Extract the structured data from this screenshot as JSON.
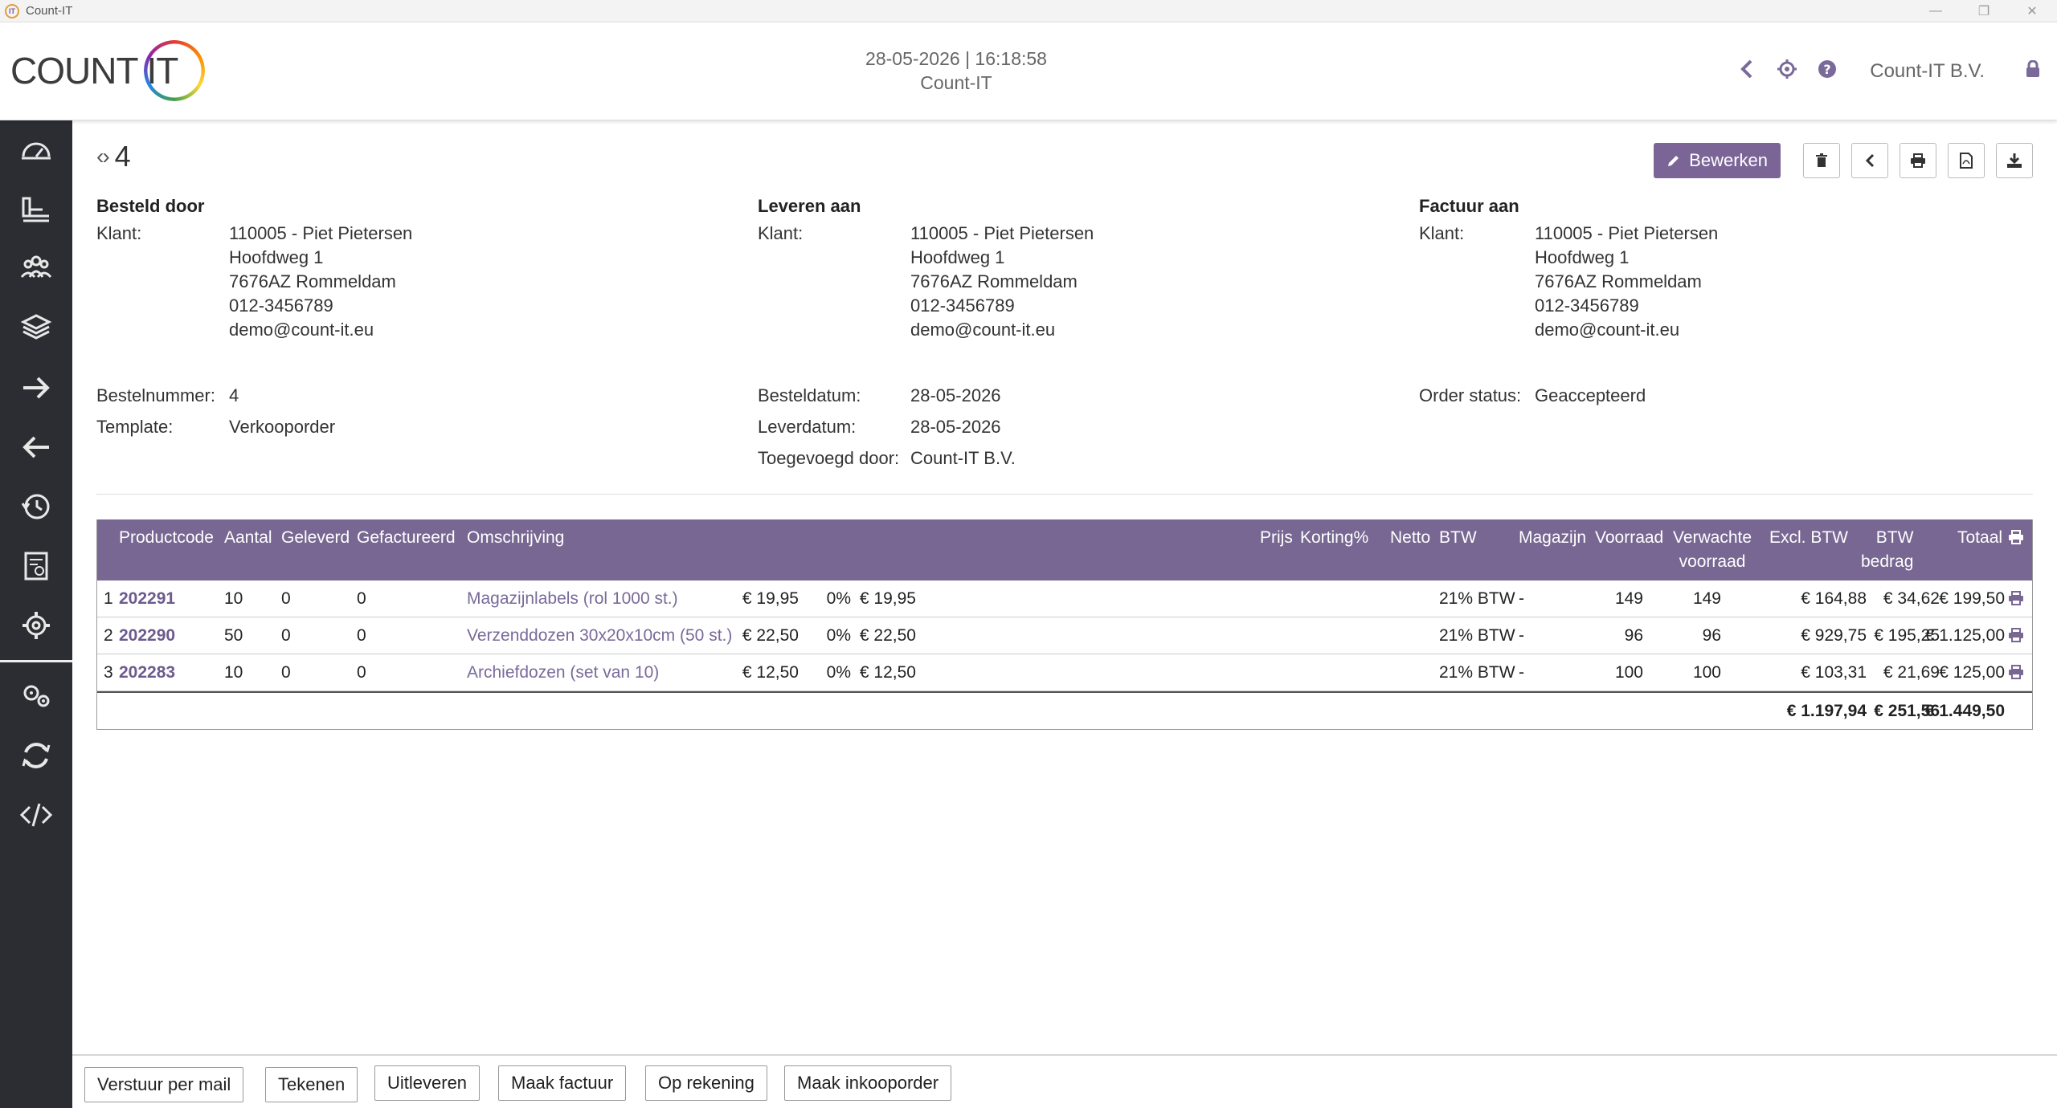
{
  "window": {
    "title": "Count-IT",
    "icon_text": "IT"
  },
  "header": {
    "datetime": "28-05-2026 | 16:18:58",
    "app_name": "Count-IT",
    "company": "Count-IT B.V.",
    "logo_text": "COUNT IT",
    "icons": [
      "back-icon",
      "settings-icon",
      "help-icon",
      "lock-icon"
    ]
  },
  "sidebar": {
    "items": [
      "dashboard-icon",
      "desk-icon",
      "relations-icon",
      "products-icon",
      "outgoing-icon",
      "incoming-icon",
      "history-icon",
      "reports-icon",
      "settings-icon",
      "advanced-settings-icon",
      "sync-icon",
      "developer-icon"
    ]
  },
  "record": {
    "number": "4"
  },
  "toolbar": {
    "edit_label": "Bewerken"
  },
  "addresses": [
    {
      "title": "Besteld door",
      "label": "Klant:",
      "name": "110005 - Piet Pietersen",
      "street": "Hoofdweg 1",
      "city": "7676AZ Rommeldam",
      "phone": "012-3456789",
      "email": "demo@count-it.eu"
    },
    {
      "title": "Leveren aan",
      "label": "Klant:",
      "name": "110005 - Piet Pietersen",
      "street": "Hoofdweg 1",
      "city": "7676AZ Rommeldam",
      "phone": "012-3456789",
      "email": "demo@count-it.eu"
    },
    {
      "title": "Factuur aan",
      "label": "Klant:",
      "name": "110005 - Piet Pietersen",
      "street": "Hoofdweg 1",
      "city": "7676AZ Rommeldam",
      "phone": "012-3456789",
      "email": "demo@count-it.eu"
    }
  ],
  "meta": {
    "order_number_label": "Bestelnummer:",
    "order_number": "4",
    "template_label": "Template:",
    "template": "Verkooporder",
    "order_date_label": "Besteldatum:",
    "order_date": "28-05-2026",
    "delivery_date_label": "Leverdatum:",
    "delivery_date": "28-05-2026",
    "added_by_label": "Toegevoegd door:",
    "added_by": "Count-IT B.V.",
    "status_label": "Order status:",
    "status": "Geaccepteerd"
  },
  "table": {
    "headers": {
      "productcode": "Productcode",
      "aantal": "Aantal",
      "geleverd": "Geleverd",
      "gefactureerd": "Gefactureerd",
      "omschrijving": "Omschrijving",
      "prijs": "Prijs",
      "korting": "Korting%",
      "netto": "Netto",
      "btw": "BTW",
      "magazijn": "Magazijn",
      "voorraad": "Voorraad",
      "verwachte_1": "Verwachte",
      "verwachte_2": "voorraad",
      "excl": "Excl. BTW",
      "btwbedrag_1": "BTW",
      "btwbedrag_2": "bedrag",
      "totaal": "Totaal"
    },
    "rows": [
      {
        "nr": "1",
        "code": "202291",
        "aantal": "10",
        "geleverd": "0",
        "gefactureerd": "0",
        "omschrijving": "Magazijnlabels (rol 1000 st.)",
        "prijs": "€ 19,95",
        "korting": "0%",
        "netto": "€ 19,95",
        "btw": "21% BTW",
        "magazijn": "-",
        "voorraad": "149",
        "verwacht": "149",
        "excl": "€ 164,88",
        "btwbedrag": "€ 34,62",
        "totaal": "€ 199,50"
      },
      {
        "nr": "2",
        "code": "202290",
        "aantal": "50",
        "geleverd": "0",
        "gefactureerd": "0",
        "omschrijving": "Verzenddozen 30x20x10cm (50 st.)",
        "prijs": "€ 22,50",
        "korting": "0%",
        "netto": "€ 22,50",
        "btw": "21% BTW",
        "magazijn": "-",
        "voorraad": "96",
        "verwacht": "96",
        "excl": "€ 929,75",
        "btwbedrag": "€ 195,25",
        "totaal": "€ 1.125,00"
      },
      {
        "nr": "3",
        "code": "202283",
        "aantal": "10",
        "geleverd": "0",
        "gefactureerd": "0",
        "omschrijving": "Archiefdozen (set van 10)",
        "prijs": "€ 12,50",
        "korting": "0%",
        "netto": "€ 12,50",
        "btw": "21% BTW",
        "magazijn": "-",
        "voorraad": "100",
        "verwacht": "100",
        "excl": "€ 103,31",
        "btwbedrag": "€ 21,69",
        "totaal": "€ 125,00"
      }
    ],
    "totals": {
      "excl": "€ 1.197,94",
      "btwbedrag": "€ 251,56",
      "totaal": "€ 1.449,50"
    }
  },
  "bottom_actions": {
    "mail": "Verstuur per mail",
    "sign": "Tekenen",
    "deliver": "Uitleveren",
    "invoice": "Maak factuur",
    "account": "Op rekening",
    "purchase": "Maak inkooporder"
  }
}
